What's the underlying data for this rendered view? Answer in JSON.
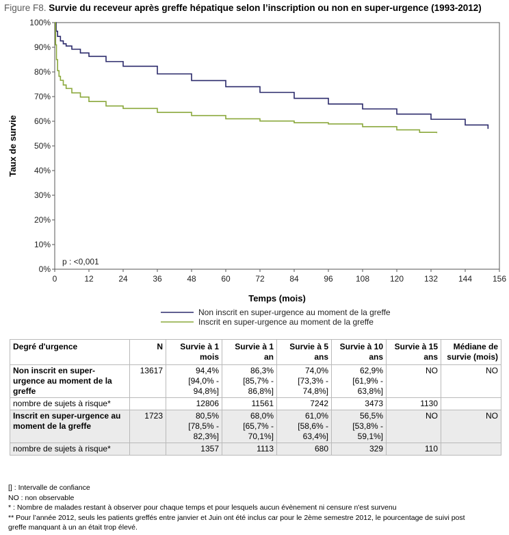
{
  "figure": {
    "label": "Figure F8.",
    "title": "Survie du receveur après greffe hépatique selon l’inscription ou non en super-urgence (1993-2012)"
  },
  "chart_data": {
    "type": "line",
    "xlabel": "Temps (mois)",
    "ylabel": "Taux de survie",
    "xlim": [
      0,
      156
    ],
    "ylim": [
      0,
      100
    ],
    "xticks": [
      0,
      12,
      24,
      36,
      48,
      60,
      72,
      84,
      96,
      108,
      120,
      132,
      144,
      156
    ],
    "yticks": [
      0,
      10,
      20,
      30,
      40,
      50,
      60,
      70,
      80,
      90,
      100
    ],
    "ytick_labels": [
      "0%",
      "10%",
      "20%",
      "30%",
      "40%",
      "50%",
      "60%",
      "70%",
      "80%",
      "90%",
      "100%"
    ],
    "annotation": "p : <0,001",
    "legend_position": "bottom",
    "grid": false,
    "series": [
      {
        "name": "Non inscrit en super-urgence au moment de la greffe",
        "color": "#2b2a6b",
        "x": [
          0,
          0.5,
          1,
          2,
          3,
          4,
          6,
          9,
          12,
          18,
          24,
          36,
          48,
          60,
          72,
          84,
          96,
          108,
          120,
          132,
          144,
          152
        ],
        "y": [
          100,
          96.5,
          94.4,
          92.6,
          91.4,
          90.5,
          89.2,
          87.7,
          86.3,
          84.2,
          82.3,
          79.2,
          76.5,
          74.0,
          71.7,
          69.3,
          67.0,
          65.0,
          62.9,
          60.8,
          58.5,
          56.9
        ]
      },
      {
        "name": "Inscrit en super-urgence au moment de la greffe",
        "color": "#8aa83b",
        "x": [
          0,
          0.3,
          0.6,
          1,
          1.5,
          2,
          3,
          4,
          6,
          9,
          12,
          18,
          24,
          36,
          48,
          60,
          72,
          84,
          96,
          108,
          120,
          128,
          134
        ],
        "y": [
          100,
          91,
          85,
          80.5,
          78.2,
          76.6,
          74.7,
          73.3,
          71.5,
          69.8,
          68.0,
          66.2,
          65.2,
          63.6,
          62.3,
          61.0,
          60.1,
          59.4,
          58.9,
          57.8,
          56.5,
          55.5,
          55.2
        ]
      }
    ]
  },
  "table": {
    "headers": [
      "Degré d'urgence",
      "N",
      "Survie à 1 mois",
      "Survie à 1 an",
      "Survie à 5 ans",
      "Survie à 10 ans",
      "Survie à 15 ans",
      "Médiane de survie (mois)"
    ],
    "groups": [
      {
        "label": "Non inscrit en super-urgence au moment de la greffe",
        "n": "13617",
        "values": [
          "94,4% [94,0% - 94,8%]",
          "86,3% [85,7% - 86,8%]",
          "74,0% [73,3% - 74,8%]",
          "62,9% [61,9% - 63,8%]",
          "NO",
          "NO"
        ],
        "risk_label": "nombre de sujets à risque*",
        "risk": [
          "12806",
          "11561",
          "7242",
          "3473",
          "1130",
          ""
        ]
      },
      {
        "label": "Inscrit en super-urgence au moment de la greffe",
        "n": "1723",
        "values": [
          "80,5% [78,5% - 82,3%]",
          "68,0% [65,7% - 70,1%]",
          "61,0% [58,6% - 63,4%]",
          "56,5% [53,8% - 59,1%]",
          "NO",
          "NO"
        ],
        "risk_label": "nombre de sujets à risque*",
        "risk": [
          "1357",
          "1113",
          "680",
          "329",
          "110",
          ""
        ]
      }
    ]
  },
  "notes": [
    "[] : Intervalle de confiance",
    "NO : non observable",
    "* : Nombre de malades restant à observer pour chaque temps et pour lesquels aucun évènement ni censure n'est survenu",
    "** Pour l’année 2012, seuls les patients greffés entre janvier et Juin ont été inclus car pour le 2ème semestre 2012, le pourcentage de suivi post",
    "greffe manquant à un an était trop élevé."
  ]
}
